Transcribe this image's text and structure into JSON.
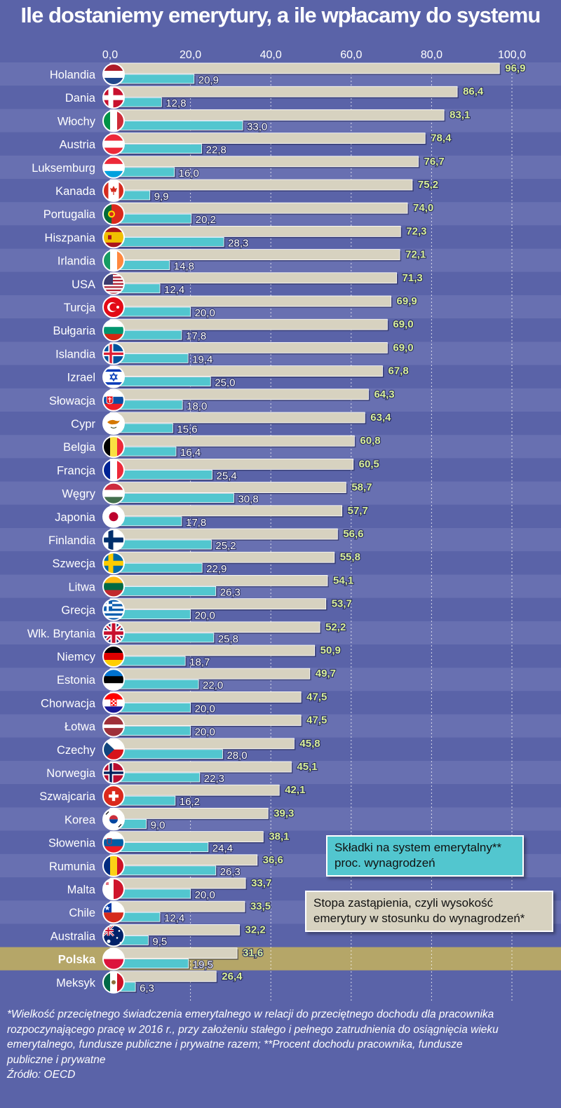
{
  "title": "Ile dostaniemy emerytury, a ile wpłacamy do systemu",
  "chart_data": {
    "type": "bar",
    "orientation": "horizontal",
    "xlim": [
      0,
      100
    ],
    "ticks": [
      "0,0",
      "20,0",
      "40,0",
      "60,0",
      "80,0",
      "100,0"
    ],
    "grid": true,
    "highlight": "Polska",
    "categories": [
      "Holandia",
      "Dania",
      "Włochy",
      "Austria",
      "Luksemburg",
      "Kanada",
      "Portugalia",
      "Hiszpania",
      "Irlandia",
      "USA",
      "Turcja",
      "Bułgaria",
      "Islandia",
      "Izrael",
      "Słowacja",
      "Cypr",
      "Belgia",
      "Francja",
      "Węgry",
      "Japonia",
      "Finlandia",
      "Szwecja",
      "Litwa",
      "Grecja",
      "Wlk. Brytania",
      "Niemcy",
      "Estonia",
      "Chorwacja",
      "Łotwa",
      "Czechy",
      "Norwegia",
      "Szwajcaria",
      "Korea",
      "Słowenia",
      "Rumunia",
      "Malta",
      "Chile",
      "Australia",
      "Polska",
      "Meksyk"
    ],
    "flags": [
      "nl-flag-icon",
      "dk-flag-icon",
      "it-flag-icon",
      "at-flag-icon",
      "lu-flag-icon",
      "ca-flag-icon",
      "pt-flag-icon",
      "es-flag-icon",
      "ie-flag-icon",
      "us-flag-icon",
      "tr-flag-icon",
      "bg-flag-icon",
      "is-flag-icon",
      "il-flag-icon",
      "sk-flag-icon",
      "cy-flag-icon",
      "be-flag-icon",
      "fr-flag-icon",
      "hu-flag-icon",
      "jp-flag-icon",
      "fi-flag-icon",
      "se-flag-icon",
      "lt-flag-icon",
      "gr-flag-icon",
      "gb-flag-icon",
      "de-flag-icon",
      "ee-flag-icon",
      "hr-flag-icon",
      "lv-flag-icon",
      "cz-flag-icon",
      "no-flag-icon",
      "ch-flag-icon",
      "kr-flag-icon",
      "si-flag-icon",
      "ro-flag-icon",
      "mt-flag-icon",
      "cl-flag-icon",
      "au-flag-icon",
      "pl-flag-icon",
      "mx-flag-icon"
    ],
    "series": [
      {
        "key": "replacement",
        "color": "#d7d2c0",
        "values": [
          96.9,
          86.4,
          83.1,
          78.4,
          76.7,
          75.2,
          74.0,
          72.3,
          72.1,
          71.3,
          69.9,
          69.0,
          69.0,
          67.8,
          64.3,
          63.4,
          60.8,
          60.5,
          58.7,
          57.7,
          56.6,
          55.8,
          54.1,
          53.7,
          52.2,
          50.9,
          49.7,
          47.5,
          47.5,
          45.8,
          45.1,
          42.1,
          39.3,
          38.1,
          36.6,
          33.7,
          33.5,
          32.2,
          31.6,
          26.4
        ],
        "labels": [
          "96,9",
          "86,4",
          "83,1",
          "78,4",
          "76,7",
          "75,2",
          "74,0",
          "72,3",
          "72,1",
          "71,3",
          "69,9",
          "69,0",
          "69,0",
          "67,8",
          "64,3",
          "63,4",
          "60,8",
          "60,5",
          "58,7",
          "57,7",
          "56,6",
          "55,8",
          "54,1",
          "53,7",
          "52,2",
          "50,9",
          "49,7",
          "47,5",
          "47,5",
          "45,8",
          "45,1",
          "42,1",
          "39,3",
          "38,1",
          "36,6",
          "33,7",
          "33,5",
          "32,2",
          "31,6",
          "26,4"
        ]
      },
      {
        "key": "contributions",
        "color": "#52c6cf",
        "values": [
          20.9,
          12.8,
          33.0,
          22.8,
          16.0,
          9.9,
          20.2,
          28.3,
          14.8,
          12.4,
          20.0,
          17.8,
          19.4,
          25.0,
          18.0,
          15.6,
          16.4,
          25.4,
          30.8,
          17.8,
          25.2,
          22.9,
          26.3,
          20.0,
          25.8,
          18.7,
          22.0,
          20.0,
          20.0,
          28.0,
          22.3,
          16.2,
          9.0,
          24.4,
          26.3,
          20.0,
          12.4,
          9.5,
          19.5,
          6.3
        ],
        "labels": [
          "20,9",
          "12,8",
          "33,0",
          "22,8",
          "16,0",
          "9,9",
          "20,2",
          "28,3",
          "14,8",
          "12,4",
          "20,0",
          "17,8",
          "19,4",
          "25,0",
          "18,0",
          "15,6",
          "16,4",
          "25,4",
          "30,8",
          "17,8",
          "25,2",
          "22,9",
          "26,3",
          "20,0",
          "25,8",
          "18,7",
          "22,0",
          "20,0",
          "20,0",
          "28,0",
          "22,3",
          "16,2",
          "9,0",
          "24,4",
          "26,3",
          "20,0",
          "12,4",
          "9,5",
          "19,5",
          "6,3"
        ]
      }
    ],
    "legend": {
      "contributions_line1": "Składki na system emerytalny**",
      "contributions_line2": "proc. wynagrodzeń",
      "replacement_line1": "Stopa zastąpienia, czyli wysokość",
      "replacement_line2": "emerytury w stosunku do wynagrodzeń*"
    }
  },
  "footnote": {
    "line1": "*Wielkość przeciętnego świadczenia emerytalnego w relacji do przeciętnego dochodu dla pracownika",
    "line2": "rozpoczynającego pracę w 2016 r., przy założeniu stałego i pełnego zatrudnienia do osiągnięcia wieku",
    "line3": "emerytalnego, fundusze publiczne i prywatne razem;  **Procent dochodu pracownika, fundusze",
    "line4": "publiczne i prywatne",
    "source": "Źródło: OECD"
  }
}
